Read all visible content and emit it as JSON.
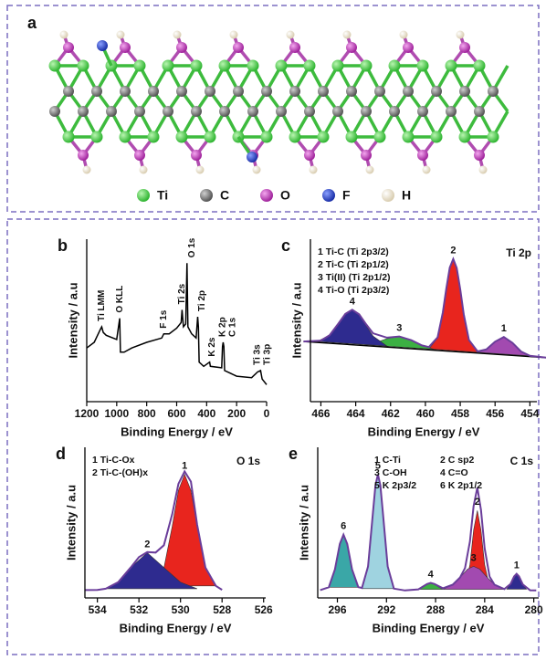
{
  "panel_a": {
    "label": "a",
    "legend": [
      "Ti",
      "C",
      "O",
      "F",
      "H"
    ]
  },
  "chart_data": [
    {
      "type": "line",
      "panel": "b",
      "xlabel": "Binding Energy / eV",
      "ylabel": "Intensity / a.u",
      "xlim": [
        1200,
        0
      ],
      "xticks": [
        1200,
        1000,
        800,
        600,
        400,
        200,
        0
      ],
      "ylim": [
        0,
        115
      ],
      "color": "#000000",
      "x": [
        1200,
        1150,
        1110,
        1100,
        1090,
        1070,
        1000,
        980,
        975,
        950,
        900,
        800,
        700,
        686,
        650,
        600,
        570,
        564,
        555,
        540,
        531,
        525,
        500,
        470,
        460,
        455,
        450,
        420,
        380,
        375,
        300,
        294,
        290,
        285,
        280,
        200,
        100,
        60,
        40,
        30,
        0
      ],
      "values": [
        38,
        42,
        51,
        53,
        49,
        47,
        44,
        59,
        35,
        35,
        38,
        42,
        45,
        48,
        48,
        52,
        56,
        65,
        53,
        55,
        98,
        53,
        48,
        45,
        60,
        53,
        28,
        25,
        28,
        25,
        24,
        39,
        42,
        39,
        22,
        18,
        17,
        21,
        22,
        16,
        12
      ],
      "annotations": [
        {
          "text": "Ti LMM",
          "x": 1100
        },
        {
          "text": "O KLL",
          "x": 978
        },
        {
          "text": "F 1s",
          "x": 686
        },
        {
          "text": "Ti 2s",
          "x": 564
        },
        {
          "text": "O 1s",
          "x": 531
        },
        {
          "text": "Ti 2p",
          "x": 458
        },
        {
          "text": "K 2s",
          "x": 378
        },
        {
          "text": "K 2p",
          "x": 294
        },
        {
          "text": "C 1s",
          "x": 285
        },
        {
          "text": "Ti 3s",
          "x": 62
        },
        {
          "text": "Ti 3p",
          "x": 37
        }
      ]
    },
    {
      "type": "area",
      "panel": "c",
      "label": "Ti 2p",
      "xlabel": "Binding Energy / eV",
      "ylabel": "Intensity / a.u",
      "xlim": [
        466.6,
        453.6
      ],
      "xticks": [
        466,
        464,
        462,
        460,
        458,
        456,
        454
      ],
      "ylim": [
        0,
        100
      ],
      "legend_columns": 1,
      "background": {
        "color": "#000000",
        "x": [
          467,
          453
        ],
        "values": [
          37,
          27
        ]
      },
      "series": [
        {
          "name": "1 Ti-C (Ti 2p3/2)",
          "label": "1",
          "color": "#a24ab0",
          "x": [
            457,
            456.5,
            456,
            455.5,
            455,
            454.5,
            454
          ],
          "values": [
            30.4,
            32.2,
            36.9,
            39.8,
            36.2,
            30.8,
            28.2
          ]
        },
        {
          "name": "2 Ti-C (Ti 2p1/2)",
          "label": "2",
          "color": "#e8251e",
          "x": [
            459.8,
            459.3,
            459,
            458.8,
            458.6,
            458.4,
            458.2,
            458,
            457.8,
            457.5,
            457
          ],
          "values": [
            32.4,
            39.2,
            54.7,
            69.5,
            82.5,
            87.8,
            82.3,
            69.0,
            53.8,
            37.9,
            30.4
          ]
        },
        {
          "name": "3 Ti(II) (Ti 2p1/2)",
          "label": "3",
          "color": "#3cb043",
          "x": [
            463.5,
            462.8,
            462.2,
            461.5,
            460.8,
            460.2,
            459.5
          ],
          "values": [
            35.1,
            36.5,
            38.8,
            40.1,
            37.8,
            34.6,
            32.2
          ]
        },
        {
          "name": "4 Ti-O (Ti 2p3/2)",
          "label": "4",
          "color": "#2e2b8f",
          "x": [
            466.2,
            465.5,
            465,
            464.6,
            464.2,
            463.8,
            463.4,
            463,
            462.2
          ],
          "values": [
            37.1,
            40.9,
            48.0,
            54.0,
            56.5,
            53.4,
            46.8,
            40.3,
            34.2
          ]
        }
      ],
      "envelope": {
        "color": "#6a3d9a",
        "x": [
          467,
          466,
          465.5,
          465,
          464.6,
          464.2,
          463.8,
          463.4,
          463,
          462.2,
          461.5,
          460.8,
          460.2,
          459.8,
          459.3,
          459,
          458.8,
          458.6,
          458.4,
          458.2,
          458,
          457.8,
          457.5,
          457,
          456.5,
          456,
          455.5,
          455,
          454.5,
          454,
          453
        ],
        "values": [
          37.0,
          37.6,
          40.9,
          48.0,
          54.0,
          56.6,
          53.7,
          47.6,
          42.0,
          39.4,
          40.1,
          37.8,
          34.6,
          33.6,
          39.6,
          54.9,
          69.5,
          82.5,
          87.8,
          82.3,
          69.0,
          53.8,
          37.9,
          30.9,
          32.2,
          36.9,
          39.8,
          36.2,
          30.8,
          28.2,
          27.0
        ]
      }
    },
    {
      "type": "area",
      "panel": "d",
      "label": "O 1s",
      "xlabel": "Binding Energy / eV",
      "ylabel": "Intensity / a.u",
      "xlim": [
        534.6,
        525.9
      ],
      "xticks": [
        534,
        532,
        530,
        528,
        526
      ],
      "ylim": [
        0,
        100
      ],
      "legend_columns": 1,
      "series": [
        {
          "name": "1 Ti-C-Ox",
          "label": "1",
          "color": "#e8251e",
          "x": [
            531.2,
            530.8,
            530.4,
            530.1,
            529.8,
            529.5,
            529.2,
            528.8,
            528.3
          ],
          "values": [
            8.0,
            19.8,
            47.5,
            71.4,
            82.0,
            71.4,
            47.5,
            19.8,
            8.0
          ]
        },
        {
          "name": "2 Ti-C-(OH)x",
          "label": "2",
          "color": "#2e2b8f",
          "x": [
            533.6,
            533,
            532.4,
            531.6,
            530.8,
            530,
            529.2
          ],
          "values": [
            6.1,
            10.4,
            20.2,
            30.0,
            20.2,
            10.4,
            6.1
          ]
        }
      ],
      "envelope": {
        "color": "#6a3d9a",
        "x": [
          534.6,
          534,
          533.6,
          533,
          532.4,
          532,
          531.6,
          531.2,
          530.8,
          530.4,
          530.1,
          529.8,
          529.5,
          529.2,
          528.8,
          528.3,
          528
        ],
        "values": [
          5.2,
          5.3,
          6.1,
          10.4,
          20.2,
          27.1,
          30.4,
          30.1,
          35.0,
          55.6,
          75.7,
          84.0,
          77.2,
          48.6,
          20.1,
          8.0,
          5.4
        ]
      }
    },
    {
      "type": "area",
      "panel": "e",
      "label": "C 1s",
      "xlabel": "Binding Energy / eV",
      "ylabel": "Intensity / a.u",
      "xlim": [
        297.6,
        279.6
      ],
      "xticks": [
        296,
        292,
        288,
        284,
        280
      ],
      "ylim": [
        0,
        100
      ],
      "legend_columns": 2,
      "series": [
        {
          "name": "1 C-Ti",
          "label": "1",
          "color": "#2e2b8f",
          "x": [
            282.2,
            281.9,
            281.6,
            281.4,
            281.2,
            280.9,
            280.6
          ],
          "values": [
            5.8,
            9.0,
            14.3,
            16.0,
            14.3,
            9.0,
            5.8
          ]
        },
        {
          "name": "2 C sp2",
          "label": "2",
          "color": "#e8251e",
          "x": [
            285.6,
            285.2,
            284.9,
            284.6,
            284.3,
            284,
            283.6
          ],
          "values": [
            7.3,
            22.2,
            45.0,
            58.0,
            45.0,
            22.2,
            7.3
          ]
        },
        {
          "name": "3 C-OH",
          "label": "3",
          "color": "#a24ab0",
          "x": [
            287.4,
            286.6,
            286,
            285.4,
            284.9,
            284.4,
            283.8,
            283.2,
            282.4
          ],
          "values": [
            5.7,
            8.8,
            13.7,
            19.1,
            21.0,
            19.1,
            13.7,
            8.8,
            5.7
          ]
        },
        {
          "name": "4 C=O",
          "label": "4",
          "color": "#3cb043",
          "x": [
            289.4,
            289,
            288.7,
            288.4,
            288.1,
            287.8,
            287.4
          ],
          "values": [
            5.7,
            7.4,
            9.2,
            10.0,
            9.2,
            7.4,
            5.7
          ]
        },
        {
          "name": "5 K 2p3/2",
          "label": "5",
          "color": "#9fd3e0",
          "x": [
            294,
            293.5,
            293.1,
            292.9,
            292.7,
            292.5,
            292.3,
            291.9,
            291.4
          ],
          "values": [
            6.2,
            20.9,
            56.9,
            74.8,
            82.0,
            74.8,
            56.9,
            20.9,
            6.2
          ]
        },
        {
          "name": "6 K 2p1/2",
          "label": "6",
          "color": "#3aa7a7",
          "x": [
            296.7,
            296.2,
            295.8,
            295.5,
            295.2,
            294.8,
            294.3
          ],
          "values": [
            7.1,
            18.9,
            35.9,
            42.0,
            35.9,
            18.9,
            7.1
          ]
        }
      ],
      "envelope": {
        "color": "#6a3d9a",
        "x": [
          297.4,
          296.7,
          296.2,
          295.8,
          295.5,
          295.2,
          294.8,
          294.3,
          294,
          293.5,
          293.1,
          292.9,
          292.7,
          292.5,
          292.3,
          291.9,
          291.4,
          290.5,
          289.4,
          288.7,
          288.4,
          288.1,
          287.4,
          286.6,
          286,
          285.6,
          285.2,
          284.9,
          284.6,
          284.3,
          284,
          283.6,
          283.2,
          282.4,
          281.9,
          281.6,
          281.4,
          281.2,
          280.9,
          280.3,
          279.8
        ],
        "values": [
          5.2,
          7.1,
          18.9,
          35.9,
          42.0,
          35.9,
          18.9,
          7.2,
          6.6,
          20.9,
          56.9,
          74.8,
          82.0,
          74.8,
          56.9,
          20.9,
          6.2,
          5.0,
          5.7,
          9.2,
          10.0,
          9.3,
          6.4,
          8.8,
          13.7,
          19.8,
          37.5,
          61.0,
          73.3,
          58.4,
          32.9,
          14.2,
          8.8,
          5.9,
          9.2,
          14.3,
          16.0,
          14.3,
          9.0,
          5.1,
          5.0
        ]
      }
    }
  ]
}
